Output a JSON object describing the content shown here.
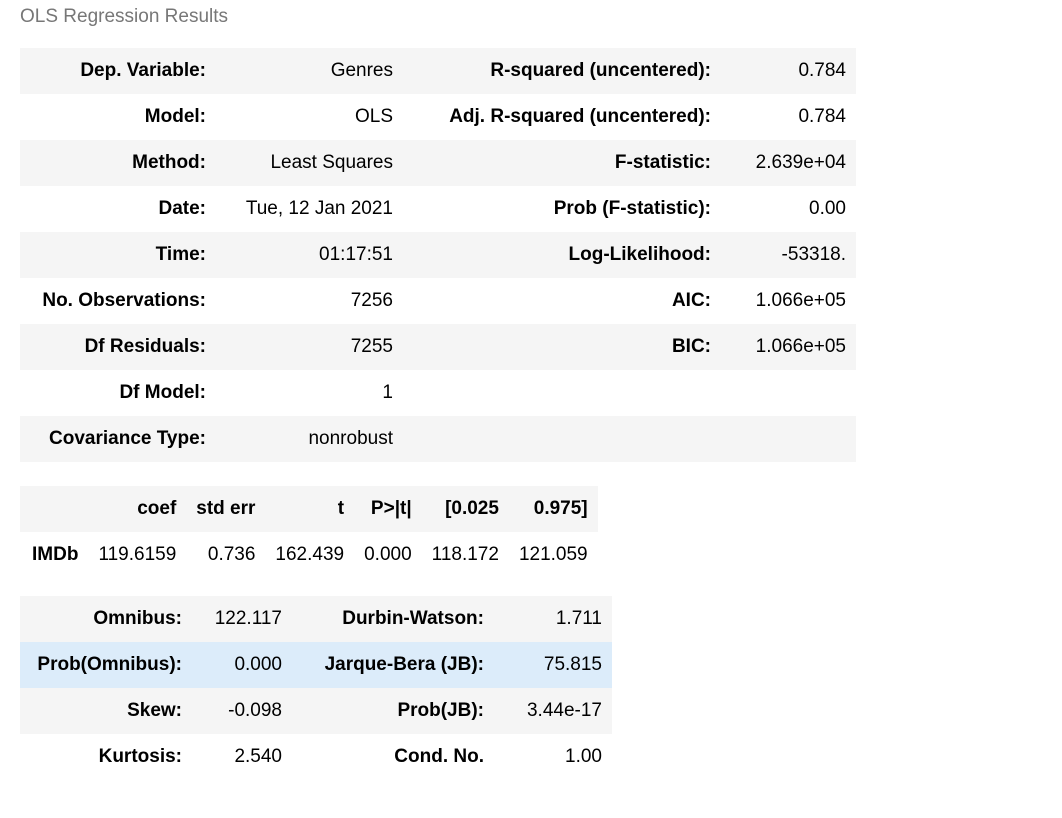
{
  "caption": "OLS Regression Results",
  "summary": {
    "rows": [
      {
        "l1": "Dep. Variable:",
        "v1": "Genres",
        "l2": "R-squared (uncentered):",
        "v2": "0.784"
      },
      {
        "l1": "Model:",
        "v1": "OLS",
        "l2": "Adj. R-squared (uncentered):",
        "v2": "0.784"
      },
      {
        "l1": "Method:",
        "v1": "Least Squares",
        "l2": "F-statistic:",
        "v2": "2.639e+04"
      },
      {
        "l1": "Date:",
        "v1": "Tue, 12 Jan 2021",
        "l2": "Prob (F-statistic):",
        "v2": "0.00"
      },
      {
        "l1": "Time:",
        "v1": "01:17:51",
        "l2": "Log-Likelihood:",
        "v2": "-53318."
      },
      {
        "l1": "No. Observations:",
        "v1": "7256",
        "l2": "AIC:",
        "v2": "1.066e+05"
      },
      {
        "l1": "Df Residuals:",
        "v1": "7255",
        "l2": "BIC:",
        "v2": "1.066e+05"
      },
      {
        "l1": "Df Model:",
        "v1": "1",
        "l2": "",
        "v2": ""
      },
      {
        "l1": "Covariance Type:",
        "v1": "nonrobust",
        "l2": "",
        "v2": ""
      }
    ]
  },
  "coef_table": {
    "headers": [
      "",
      "coef",
      "std err",
      "t",
      "P>|t|",
      "[0.025",
      "0.975]"
    ],
    "rows": [
      {
        "name": "IMDb",
        "values": [
          "119.6159",
          "0.736",
          "162.439",
          "0.000",
          "118.172",
          "121.059"
        ]
      }
    ]
  },
  "diagnostics": {
    "rows": [
      {
        "l1": "Omnibus:",
        "v1": "122.117",
        "l2": "Durbin-Watson:",
        "v2": "1.711"
      },
      {
        "l1": "Prob(Omnibus):",
        "v1": "0.000",
        "l2": "Jarque-Bera (JB):",
        "v2": "75.815"
      },
      {
        "l1": "Skew:",
        "v1": "-0.098",
        "l2": "Prob(JB):",
        "v2": "3.44e-17"
      },
      {
        "l1": "Kurtosis:",
        "v1": "2.540",
        "l2": "Cond. No.",
        "v2": "1.00"
      }
    ],
    "highlighted_row": 1
  },
  "colors": {
    "stripe": "#f5f5f5",
    "highlight": "#dcecfa",
    "caption": "#777777"
  }
}
